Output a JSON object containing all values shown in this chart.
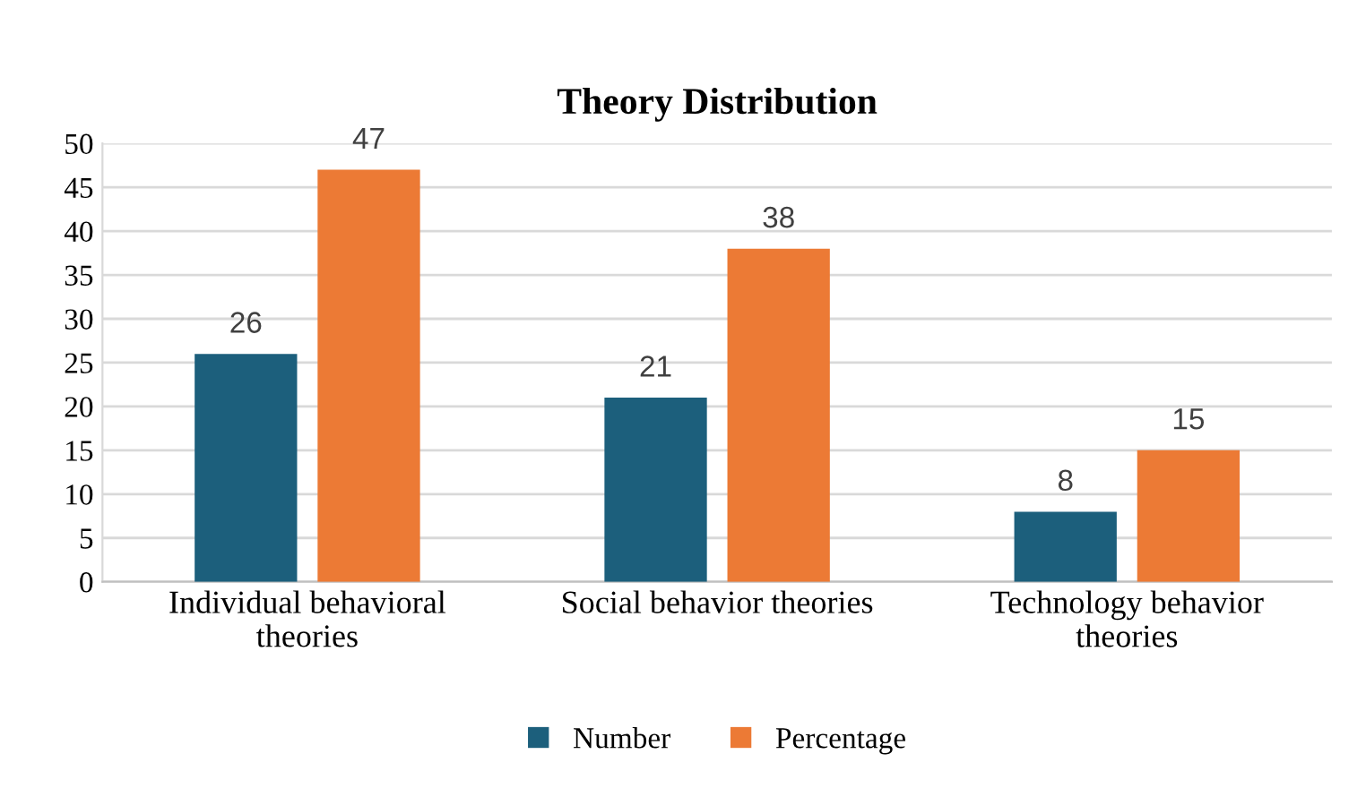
{
  "chart_data": {
    "type": "bar",
    "title": "Theory Distribution",
    "categories": [
      "Individual behavioral\ntheories",
      "Social behavior theories",
      "Technology behavior\ntheories"
    ],
    "series": [
      {
        "name": "Number",
        "color": "#1c5f7c",
        "values": [
          26,
          21,
          8
        ]
      },
      {
        "name": "Percentage",
        "color": "#ec7a35",
        "values": [
          47,
          38,
          15
        ]
      }
    ],
    "ylim": [
      0,
      50
    ],
    "yticks": [
      0,
      5,
      10,
      15,
      20,
      25,
      30,
      35,
      40,
      45,
      50
    ],
    "grid": "y",
    "legend": "bottom",
    "data_labels": true
  }
}
